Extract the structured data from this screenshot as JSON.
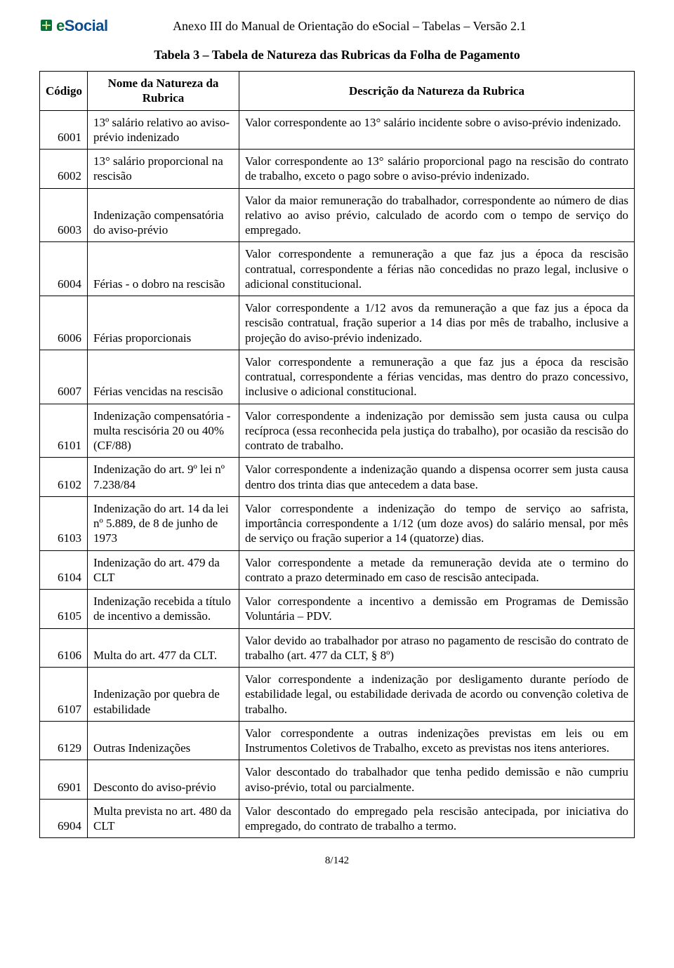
{
  "header": {
    "logo_e": "e",
    "logo_social": "Social",
    "title": "Anexo III do Manual de Orientação do eSocial – Tabelas – Versão 2.1"
  },
  "table": {
    "title": "Tabela 3 – Tabela de Natureza das Rubricas da Folha de Pagamento",
    "columns": {
      "codigo": "Código",
      "nome": "Nome da Natureza da Rubrica",
      "descricao": "Descrição da Natureza da Rubrica"
    },
    "rows": [
      {
        "codigo": "6001",
        "nome": "13º salário relativo ao aviso-prévio indenizado",
        "desc": "Valor correspondente ao 13° salário incidente sobre o aviso-prévio indenizado."
      },
      {
        "codigo": "6002",
        "nome": "13° salário proporcional na rescisão",
        "desc": "Valor correspondente ao 13° salário proporcional pago na rescisão do contrato de trabalho, exceto o pago sobre o aviso-prévio indenizado."
      },
      {
        "codigo": "6003",
        "nome": "Indenização compensatória do aviso-prévio",
        "desc": "Valor da maior remuneração do trabalhador, correspondente ao número de dias relativo ao aviso prévio, calculado de acordo com o tempo de serviço do empregado."
      },
      {
        "codigo": "6004",
        "nome": "Férias - o dobro na rescisão",
        "desc": "Valor correspondente a remuneração a que faz jus a época da rescisão contratual, correspondente a férias não concedidas no prazo legal, inclusive o adicional constitucional."
      },
      {
        "codigo": "6006",
        "nome": "Férias proporcionais",
        "desc": "Valor correspondente a 1/12 avos da remuneração a que faz jus a época da rescisão contratual, fração superior a 14 dias por mês de trabalho, inclusive a projeção do aviso-prévio indenizado."
      },
      {
        "codigo": "6007",
        "nome": "Férias vencidas na rescisão",
        "desc": "Valor correspondente a remuneração a que faz jus a época da rescisão contratual, correspondente a férias vencidas, mas dentro do prazo concessivo, inclusive o adicional constitucional."
      },
      {
        "codigo": "6101",
        "nome": "Indenização compensatória - multa rescisória 20 ou 40% (CF/88)",
        "desc": "Valor correspondente a indenização por demissão sem justa causa ou culpa recíproca (essa reconhecida pela justiça do trabalho), por ocasião da rescisão do contrato de trabalho."
      },
      {
        "codigo": "6102",
        "nome": "Indenização do art. 9º lei nº 7.238/84",
        "desc": "Valor correspondente a indenização quando a dispensa ocorrer sem justa causa dentro dos trinta dias que antecedem a data base."
      },
      {
        "codigo": "6103",
        "nome": "Indenização do art. 14 da lei nº 5.889, de 8 de junho de 1973",
        "desc": "Valor correspondente a indenização do tempo de serviço ao safrista, importância correspondente a 1/12 (um doze avos) do salário mensal, por mês de serviço ou fração superior a 14 (quatorze) dias."
      },
      {
        "codigo": "6104",
        "nome": "Indenização do art. 479 da CLT",
        "desc": "Valor correspondente a metade da remuneração devida ate o termino do contrato a prazo determinado em caso de rescisão antecipada."
      },
      {
        "codigo": "6105",
        "nome": "Indenização recebida a título de incentivo a demissão.",
        "desc": "Valor correspondente a incentivo a demissão em Programas de Demissão Voluntária – PDV."
      },
      {
        "codigo": "6106",
        "nome": "Multa do art. 477 da CLT.",
        "desc": "Valor devido ao trabalhador por atraso no pagamento de rescisão do contrato de trabalho (art. 477 da CLT, § 8º)"
      },
      {
        "codigo": "6107",
        "nome": "Indenização por quebra de estabilidade",
        "desc": "Valor correspondente a indenização por desligamento durante período de estabilidade legal, ou estabilidade derivada de acordo ou convenção coletiva de trabalho."
      },
      {
        "codigo": "6129",
        "nome": "Outras Indenizações",
        "desc": "Valor correspondente a outras indenizações previstas em leis ou em Instrumentos Coletivos de Trabalho, exceto as previstas nos itens anteriores."
      },
      {
        "codigo": "6901",
        "nome": "Desconto do aviso-prévio",
        "desc": "Valor descontado do trabalhador que tenha pedido demissão e não cumpriu aviso-prévio, total ou parcialmente."
      },
      {
        "codigo": "6904",
        "nome": "Multa prevista no art. 480 da CLT",
        "desc": "Valor descontado do empregado pela rescisão antecipada, por iniciativa do empregado, do contrato de trabalho a termo."
      }
    ]
  },
  "footer": {
    "page_number": "8/142"
  }
}
